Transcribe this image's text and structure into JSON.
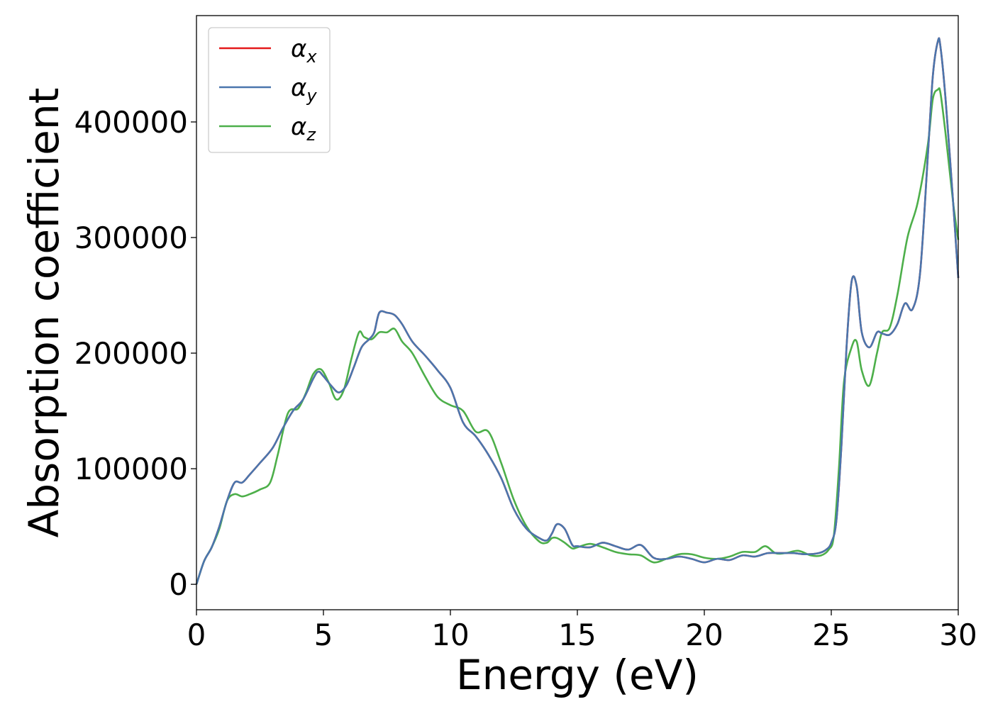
{
  "chart_data": {
    "type": "line",
    "xlabel": "Energy (eV)",
    "ylabel": "Absorption coefficient",
    "xlim": [
      0,
      30
    ],
    "ylim": [
      -22000,
      492000
    ],
    "xticks": [
      0,
      5,
      10,
      15,
      20,
      25,
      30
    ],
    "yticks": [
      0,
      100000,
      200000,
      300000,
      400000
    ],
    "grid": false,
    "legend_position": "top-left",
    "series": [
      {
        "name": "α",
        "subscript": "x",
        "color": "#e41a1c",
        "x": [
          0,
          0.3,
          0.6,
          0.9,
          1.2,
          1.5,
          1.8,
          2.1,
          2.5,
          3.0,
          3.4,
          3.8,
          4.2,
          4.6,
          4.8,
          5.0,
          5.3,
          5.6,
          5.9,
          6.2,
          6.5,
          6.8,
          7.0,
          7.2,
          7.5,
          7.8,
          8.1,
          8.5,
          9.0,
          9.5,
          10.0,
          10.5,
          11.0,
          11.5,
          12.0,
          12.5,
          13.0,
          13.5,
          13.8,
          14.0,
          14.2,
          14.5,
          14.8,
          15.0,
          15.5,
          16.0,
          16.5,
          17.0,
          17.5,
          18.0,
          18.5,
          19.0,
          19.5,
          20.0,
          20.5,
          21.0,
          21.5,
          22.0,
          22.5,
          23.0,
          23.5,
          24.0,
          24.5,
          24.8,
          25.0,
          25.2,
          25.4,
          25.6,
          25.8,
          26.0,
          26.2,
          26.5,
          26.8,
          27.0,
          27.3,
          27.6,
          27.9,
          28.2,
          28.5,
          28.8,
          29.0,
          29.2,
          29.3,
          29.5,
          29.8,
          30.0
        ],
        "y": [
          0,
          20000,
          32000,
          50000,
          72000,
          88000,
          88000,
          95000,
          105000,
          118000,
          135000,
          150000,
          160000,
          178000,
          184000,
          180000,
          172000,
          166000,
          172000,
          188000,
          205000,
          212000,
          218000,
          235000,
          235000,
          233000,
          225000,
          210000,
          198000,
          185000,
          170000,
          140000,
          128000,
          112000,
          92000,
          65000,
          48000,
          40000,
          38000,
          44000,
          52000,
          48000,
          34000,
          33000,
          32000,
          36000,
          33000,
          30000,
          34000,
          23000,
          22000,
          24000,
          22000,
          19000,
          22000,
          21000,
          25000,
          24000,
          27000,
          27000,
          27000,
          26000,
          27000,
          30000,
          36000,
          55000,
          120000,
          205000,
          262000,
          258000,
          218000,
          205000,
          218000,
          217000,
          216000,
          225000,
          243000,
          238000,
          270000,
          370000,
          440000,
          470000,
          465000,
          420000,
          330000,
          265000
        ]
      },
      {
        "name": "α",
        "subscript": "y",
        "color": "#4a76ad",
        "x": [
          0,
          0.3,
          0.6,
          0.9,
          1.2,
          1.5,
          1.8,
          2.1,
          2.5,
          3.0,
          3.4,
          3.8,
          4.2,
          4.6,
          4.8,
          5.0,
          5.3,
          5.6,
          5.9,
          6.2,
          6.5,
          6.8,
          7.0,
          7.2,
          7.5,
          7.8,
          8.1,
          8.5,
          9.0,
          9.5,
          10.0,
          10.5,
          11.0,
          11.5,
          12.0,
          12.5,
          13.0,
          13.5,
          13.8,
          14.0,
          14.2,
          14.5,
          14.8,
          15.0,
          15.5,
          16.0,
          16.5,
          17.0,
          17.5,
          18.0,
          18.5,
          19.0,
          19.5,
          20.0,
          20.5,
          21.0,
          21.5,
          22.0,
          22.5,
          23.0,
          23.5,
          24.0,
          24.5,
          24.8,
          25.0,
          25.2,
          25.4,
          25.6,
          25.8,
          26.0,
          26.2,
          26.5,
          26.8,
          27.0,
          27.3,
          27.6,
          27.9,
          28.2,
          28.5,
          28.8,
          29.0,
          29.2,
          29.3,
          29.5,
          29.8,
          30.0
        ],
        "y": [
          0,
          20000,
          32000,
          50000,
          72000,
          88000,
          88000,
          95000,
          105000,
          118000,
          135000,
          150000,
          160000,
          178000,
          184000,
          180000,
          172000,
          166000,
          172000,
          188000,
          205000,
          212000,
          218000,
          235000,
          235000,
          233000,
          225000,
          210000,
          198000,
          185000,
          170000,
          140000,
          128000,
          112000,
          92000,
          65000,
          48000,
          40000,
          38000,
          44000,
          52000,
          48000,
          34000,
          33000,
          32000,
          36000,
          33000,
          30000,
          34000,
          23000,
          22000,
          24000,
          22000,
          19000,
          22000,
          21000,
          25000,
          24000,
          27000,
          27000,
          27000,
          26000,
          27000,
          30000,
          36000,
          55000,
          120000,
          205000,
          262000,
          258000,
          218000,
          205000,
          218000,
          217000,
          216000,
          225000,
          243000,
          238000,
          270000,
          370000,
          440000,
          470000,
          465000,
          420000,
          330000,
          265000
        ]
      },
      {
        "name": "α",
        "subscript": "z",
        "color": "#4daf4a",
        "x": [
          0,
          0.3,
          0.6,
          0.9,
          1.2,
          1.5,
          1.8,
          2.1,
          2.5,
          2.9,
          3.2,
          3.6,
          4.0,
          4.3,
          4.6,
          4.9,
          5.2,
          5.5,
          5.8,
          6.1,
          6.4,
          6.6,
          6.9,
          7.2,
          7.5,
          7.8,
          8.1,
          8.5,
          9.0,
          9.5,
          10.0,
          10.5,
          11.0,
          11.5,
          12.0,
          12.5,
          13.0,
          13.5,
          13.8,
          14.0,
          14.2,
          14.5,
          14.8,
          15.0,
          15.5,
          16.0,
          16.5,
          17.0,
          17.5,
          18.0,
          18.5,
          19.0,
          19.5,
          20.0,
          20.5,
          21.0,
          21.5,
          22.0,
          22.4,
          22.8,
          23.2,
          23.7,
          24.2,
          24.6,
          24.9,
          25.1,
          25.3,
          25.5,
          25.8,
          26.0,
          26.2,
          26.5,
          26.8,
          27.0,
          27.3,
          27.6,
          28.0,
          28.4,
          28.8,
          29.0,
          29.2,
          29.3,
          29.5,
          29.8,
          30.0
        ],
        "y": [
          0,
          20000,
          32000,
          48000,
          72000,
          78000,
          76000,
          78000,
          82000,
          88000,
          112000,
          148000,
          152000,
          165000,
          182000,
          186000,
          175000,
          160000,
          168000,
          195000,
          218000,
          214000,
          212000,
          218000,
          218000,
          221000,
          210000,
          200000,
          180000,
          162000,
          155000,
          150000,
          132000,
          132000,
          105000,
          73000,
          50000,
          37000,
          36000,
          40000,
          40000,
          36000,
          31000,
          32000,
          35000,
          32000,
          28000,
          26000,
          25000,
          19000,
          22000,
          26000,
          26000,
          23000,
          22000,
          24000,
          28000,
          28000,
          33000,
          27000,
          27000,
          29000,
          25000,
          25000,
          30000,
          42000,
          100000,
          175000,
          205000,
          210000,
          185000,
          172000,
          200000,
          218000,
          222000,
          250000,
          300000,
          330000,
          380000,
          420000,
          428000,
          425000,
          390000,
          330000,
          298000
        ]
      }
    ]
  }
}
